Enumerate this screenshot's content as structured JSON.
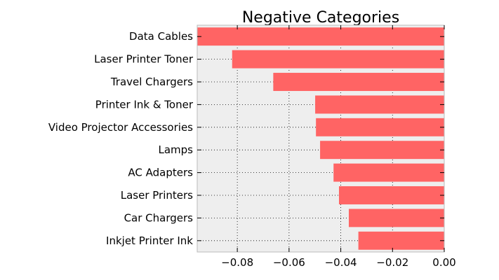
{
  "chart_data": {
    "type": "bar",
    "orientation": "horizontal",
    "title": "Negative Categories",
    "xlabel": "",
    "ylabel": "",
    "categories": [
      "Data Cables",
      "Laser Printer Toner",
      "Travel Chargers",
      "Printer Ink & Toner",
      "Video Projector Accessories",
      "Lamps",
      "AC Adapters",
      "Laser Printers",
      "Car Chargers",
      "Inkjet Printer Ink"
    ],
    "values": [
      -0.0955,
      -0.082,
      -0.0661,
      -0.0499,
      -0.0496,
      -0.048,
      -0.0428,
      -0.0407,
      -0.0369,
      -0.0332
    ],
    "xlim": [
      -0.0955,
      0.0
    ],
    "xticks": [
      -0.08,
      -0.06,
      -0.04,
      -0.02,
      0.0
    ],
    "xtick_labels": [
      "−0.08",
      "−0.06",
      "−0.04",
      "−0.02",
      "0.00"
    ],
    "grid": true,
    "bar_color": "#ff6464",
    "plot_background": "#eeeeee"
  }
}
